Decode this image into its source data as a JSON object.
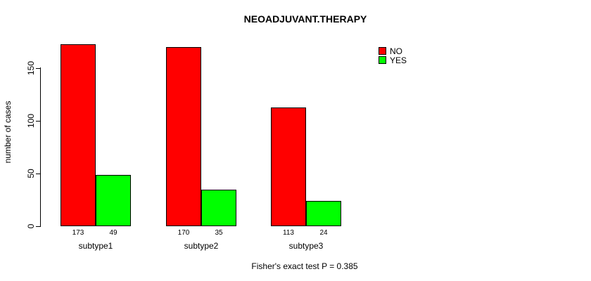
{
  "title": "NEOADJUVANT.THERAPY",
  "chart_data": {
    "type": "bar",
    "title": "NEOADJUVANT.THERAPY",
    "categories": [
      "subtype1",
      "subtype2",
      "subtype3"
    ],
    "series": [
      {
        "name": "NO",
        "color": "#ff0000",
        "values": [
          173,
          170,
          113
        ]
      },
      {
        "name": "YES",
        "color": "#00ff00",
        "values": [
          49,
          35,
          24
        ]
      }
    ],
    "ylabel": "number of cases",
    "xlabel": "",
    "yticks": [
      0,
      50,
      100,
      150
    ],
    "ylim": [
      0,
      173
    ],
    "grid": false,
    "legend_position": "top-right",
    "bar_value_labels": [
      [
        "173",
        "49"
      ],
      [
        "170",
        "35"
      ],
      [
        "113",
        "24"
      ]
    ],
    "annotation": "Fisher's exact test P = 0.385"
  },
  "legend": {
    "items": [
      {
        "label": "NO",
        "color": "#ff0000"
      },
      {
        "label": "YES",
        "color": "#00ff00"
      }
    ]
  },
  "footer": {
    "note": "Fisher's exact test P = 0.385"
  }
}
